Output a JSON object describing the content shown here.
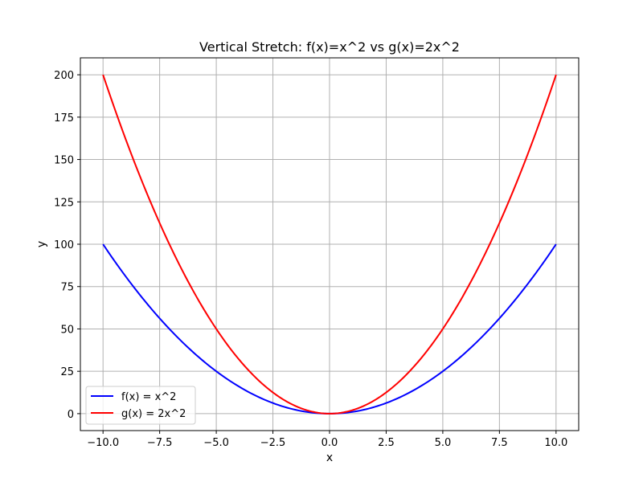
{
  "chart_data": {
    "type": "line",
    "title": "Vertical Stretch: f(x)=x^2 vs g(x)=2x^2",
    "xlabel": "x",
    "ylabel": "y",
    "xlim": [
      -11,
      11
    ],
    "ylim": [
      -10,
      210
    ],
    "x_ticks": [
      -10.0,
      -7.5,
      -5.0,
      -2.5,
      0.0,
      2.5,
      5.0,
      7.5,
      10.0
    ],
    "x_tick_labels": [
      "−10.0",
      "−7.5",
      "−5.0",
      "−2.5",
      "0.0",
      "2.5",
      "5.0",
      "7.5",
      "10.0"
    ],
    "y_ticks": [
      0,
      25,
      50,
      75,
      100,
      125,
      150,
      175,
      200
    ],
    "y_tick_labels": [
      "0",
      "25",
      "50",
      "75",
      "100",
      "125",
      "150",
      "175",
      "200"
    ],
    "grid": true,
    "legend_position": "lower-left",
    "x": [
      -10,
      -9,
      -8,
      -7,
      -6,
      -5,
      -4,
      -3,
      -2,
      -1,
      0,
      1,
      2,
      3,
      4,
      5,
      6,
      7,
      8,
      9,
      10
    ],
    "series": [
      {
        "name": "f(x) = x^2",
        "color": "#0000ff",
        "values": [
          100,
          81,
          64,
          49,
          36,
          25,
          16,
          9,
          4,
          1,
          0,
          1,
          4,
          9,
          16,
          25,
          36,
          49,
          64,
          81,
          100
        ]
      },
      {
        "name": "g(x) = 2x^2",
        "color": "#ff0000",
        "values": [
          200,
          162,
          128,
          98,
          72,
          50,
          32,
          18,
          8,
          2,
          0,
          2,
          8,
          18,
          32,
          50,
          72,
          98,
          128,
          162,
          200
        ]
      }
    ]
  }
}
